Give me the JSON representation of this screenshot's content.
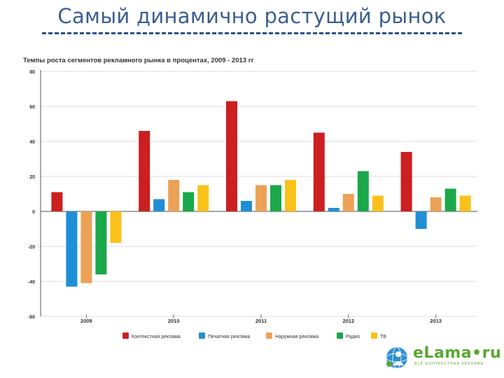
{
  "slide": {
    "title": "Самый динамично растущий рынок"
  },
  "logo": {
    "text": "eLama•ru",
    "tagline": "ВСЁ КОНТЕКСТНАЯ РЕКЛАМА",
    "icon": "globe-person-icon",
    "color": "#5aa832"
  },
  "chart_data": {
    "type": "bar",
    "title": "Темпы роста сегментов рекламного рынка в процентах, 2009 - 2013 гг",
    "xlabel": "",
    "ylabel": "",
    "categories": [
      "2009",
      "2010",
      "2011",
      "2012",
      "2013"
    ],
    "ylim": [
      -60,
      80
    ],
    "yticks": [
      80,
      60,
      40,
      20,
      0,
      -20,
      -40,
      -60
    ],
    "grid": true,
    "legend_position": "bottom",
    "series": [
      {
        "name": "Контекстная реклама",
        "color": "#cc1f1f",
        "values": [
          11,
          46,
          63,
          45,
          34
        ]
      },
      {
        "name": "Печатная реклама",
        "color": "#1f8fd6",
        "values": [
          -43,
          7,
          6,
          2,
          -10
        ]
      },
      {
        "name": "Наружная реклама",
        "color": "#eba257",
        "values": [
          -41,
          18,
          15,
          10,
          8
        ]
      },
      {
        "name": "Радио",
        "color": "#1aa84a",
        "values": [
          -36,
          11,
          15,
          23,
          13
        ]
      },
      {
        "name": "ТВ",
        "color": "#f9c11a",
        "values": [
          -18,
          15,
          18,
          9,
          9
        ]
      }
    ]
  }
}
